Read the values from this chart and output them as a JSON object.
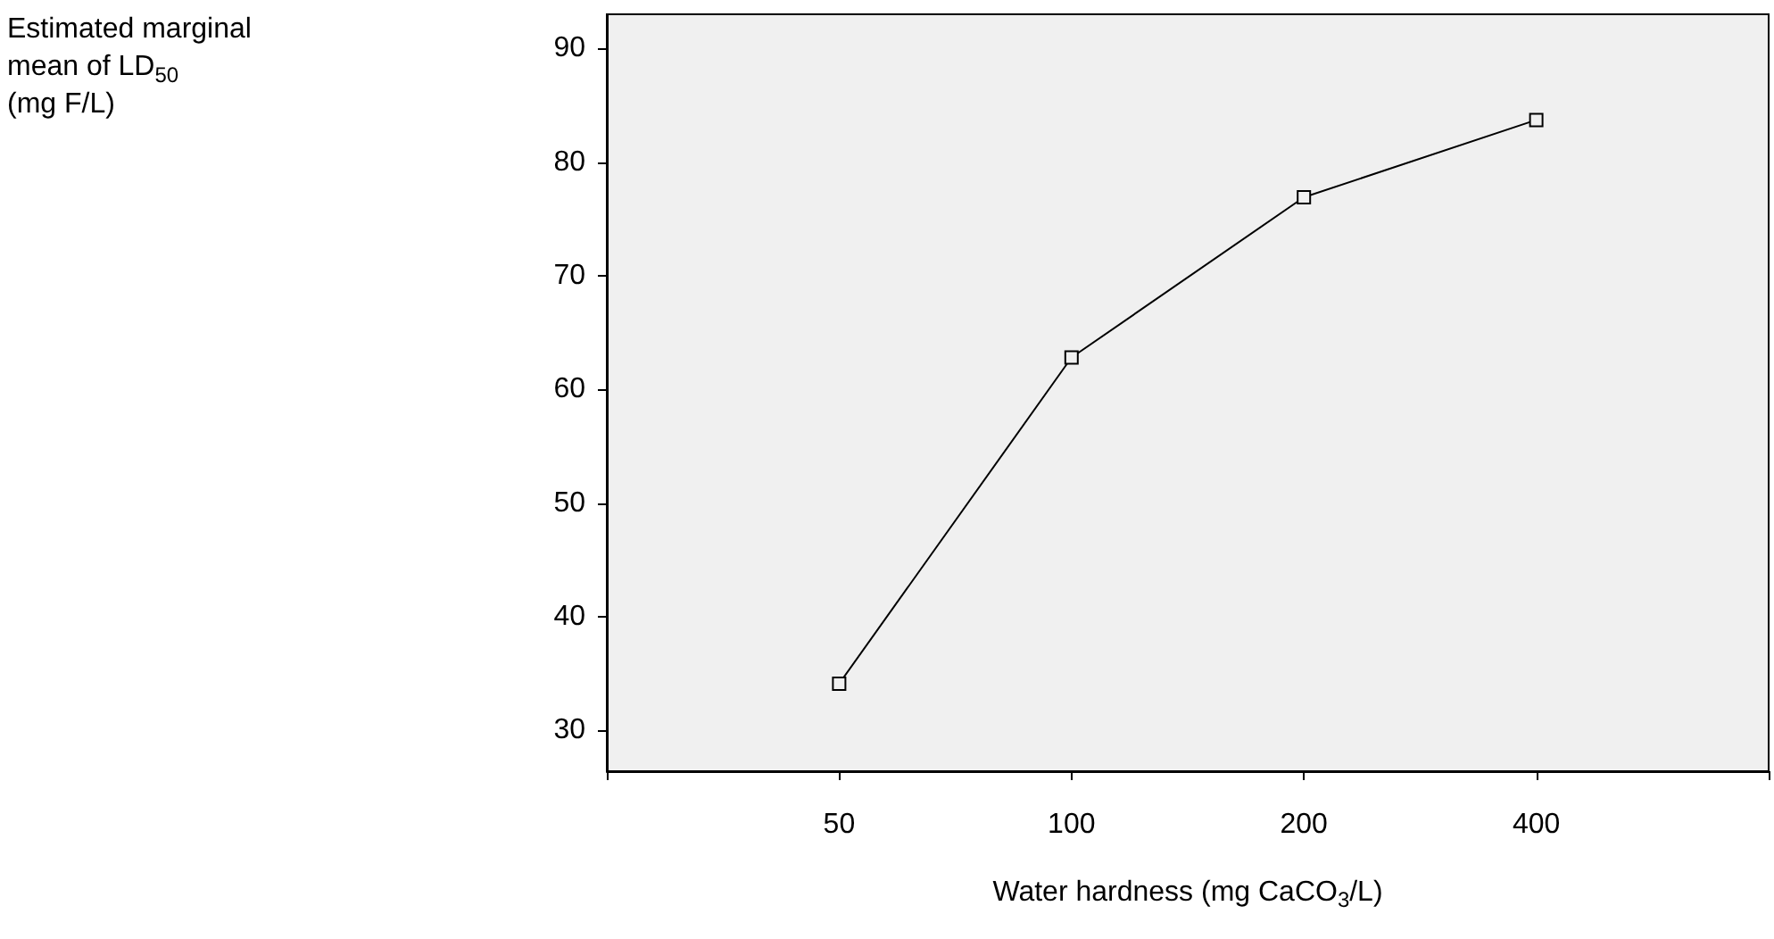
{
  "chart_data": {
    "type": "line",
    "xlabel": "Water hardness (mg CaCO$_{3}$/L)",
    "ylabel": "Estimated marginal mean of LD$_{50}$ (mg F/L)",
    "categories": [
      "50",
      "100",
      "200",
      "400"
    ],
    "series": [
      {
        "color": "#000000",
        "values": [
          34.1,
          62.8,
          76.9,
          83.7
        ]
      }
    ],
    "ylim": [
      26.4,
      93
    ],
    "yticks": [
      30,
      40,
      50,
      60,
      70,
      80,
      90
    ],
    "grid": false,
    "marker": "square",
    "line_style": "solid"
  }
}
